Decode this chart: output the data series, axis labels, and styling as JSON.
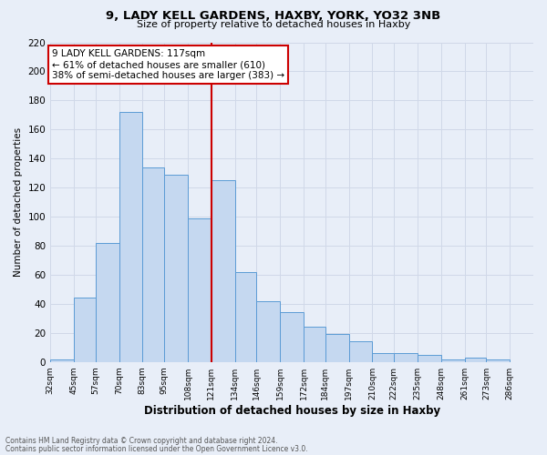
{
  "title1": "9, LADY KELL GARDENS, HAXBY, YORK, YO32 3NB",
  "title2": "Size of property relative to detached houses in Haxby",
  "xlabel": "Distribution of detached houses by size in Haxby",
  "ylabel": "Number of detached properties",
  "bin_labels": [
    "32sqm",
    "45sqm",
    "57sqm",
    "70sqm",
    "83sqm",
    "95sqm",
    "108sqm",
    "121sqm",
    "134sqm",
    "146sqm",
    "159sqm",
    "172sqm",
    "184sqm",
    "197sqm",
    "210sqm",
    "222sqm",
    "235sqm",
    "248sqm",
    "261sqm",
    "273sqm",
    "286sqm"
  ],
  "bin_edges": [
    32,
    45,
    57,
    70,
    83,
    95,
    108,
    121,
    134,
    146,
    159,
    172,
    184,
    197,
    210,
    222,
    235,
    248,
    261,
    273,
    286
  ],
  "bar_heights": [
    2,
    44,
    82,
    172,
    134,
    129,
    99,
    125,
    62,
    42,
    34,
    24,
    19,
    14,
    6,
    6,
    5,
    2,
    3,
    2
  ],
  "bar_color": "#c5d8f0",
  "bar_edgecolor": "#5b9bd5",
  "vline_x": 121,
  "vline_color": "#cc0000",
  "ylim": [
    0,
    220
  ],
  "yticks": [
    0,
    20,
    40,
    60,
    80,
    100,
    120,
    140,
    160,
    180,
    200,
    220
  ],
  "annotation_title": "9 LADY KELL GARDENS: 117sqm",
  "annotation_line1": "← 61% of detached houses are smaller (610)",
  "annotation_line2": "38% of semi-detached houses are larger (383) →",
  "annotation_box_color": "#ffffff",
  "annotation_box_edgecolor": "#cc0000",
  "grid_color": "#d0d8e8",
  "background_color": "#e8eef8",
  "footer_line1": "Contains HM Land Registry data © Crown copyright and database right 2024.",
  "footer_line2": "Contains public sector information licensed under the Open Government Licence v3.0."
}
